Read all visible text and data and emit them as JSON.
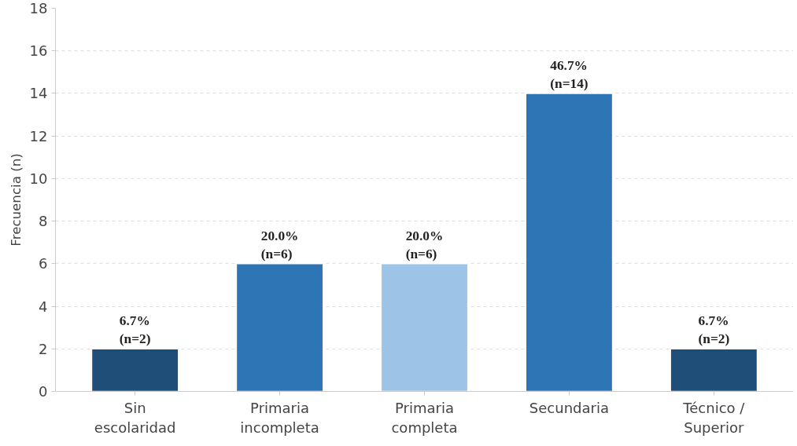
{
  "chart_data": {
    "type": "bar",
    "ylabel": "Frecuencia (n)",
    "categories": [
      "Sin\nescolaridad",
      "Primaria\nincompleta",
      "Primaria\ncompleta",
      "Secundaria",
      "Técnico /\nSuperior"
    ],
    "values": [
      2,
      6,
      6,
      14,
      2
    ],
    "colors": [
      "#1f4e79",
      "#2e75b6",
      "#9dc3e6",
      "#2e75b6",
      "#1f4e79"
    ],
    "value_labels": [
      "6.7%\n(n=2)",
      "20.0%\n(n=6)",
      "20.0%\n(n=6)",
      "46.7%\n(n=14)",
      "6.7%\n(n=2)"
    ],
    "ylim": [
      0,
      18
    ],
    "yticks": [
      0,
      2,
      4,
      6,
      8,
      10,
      12,
      14,
      16,
      18
    ],
    "grid": "y"
  }
}
